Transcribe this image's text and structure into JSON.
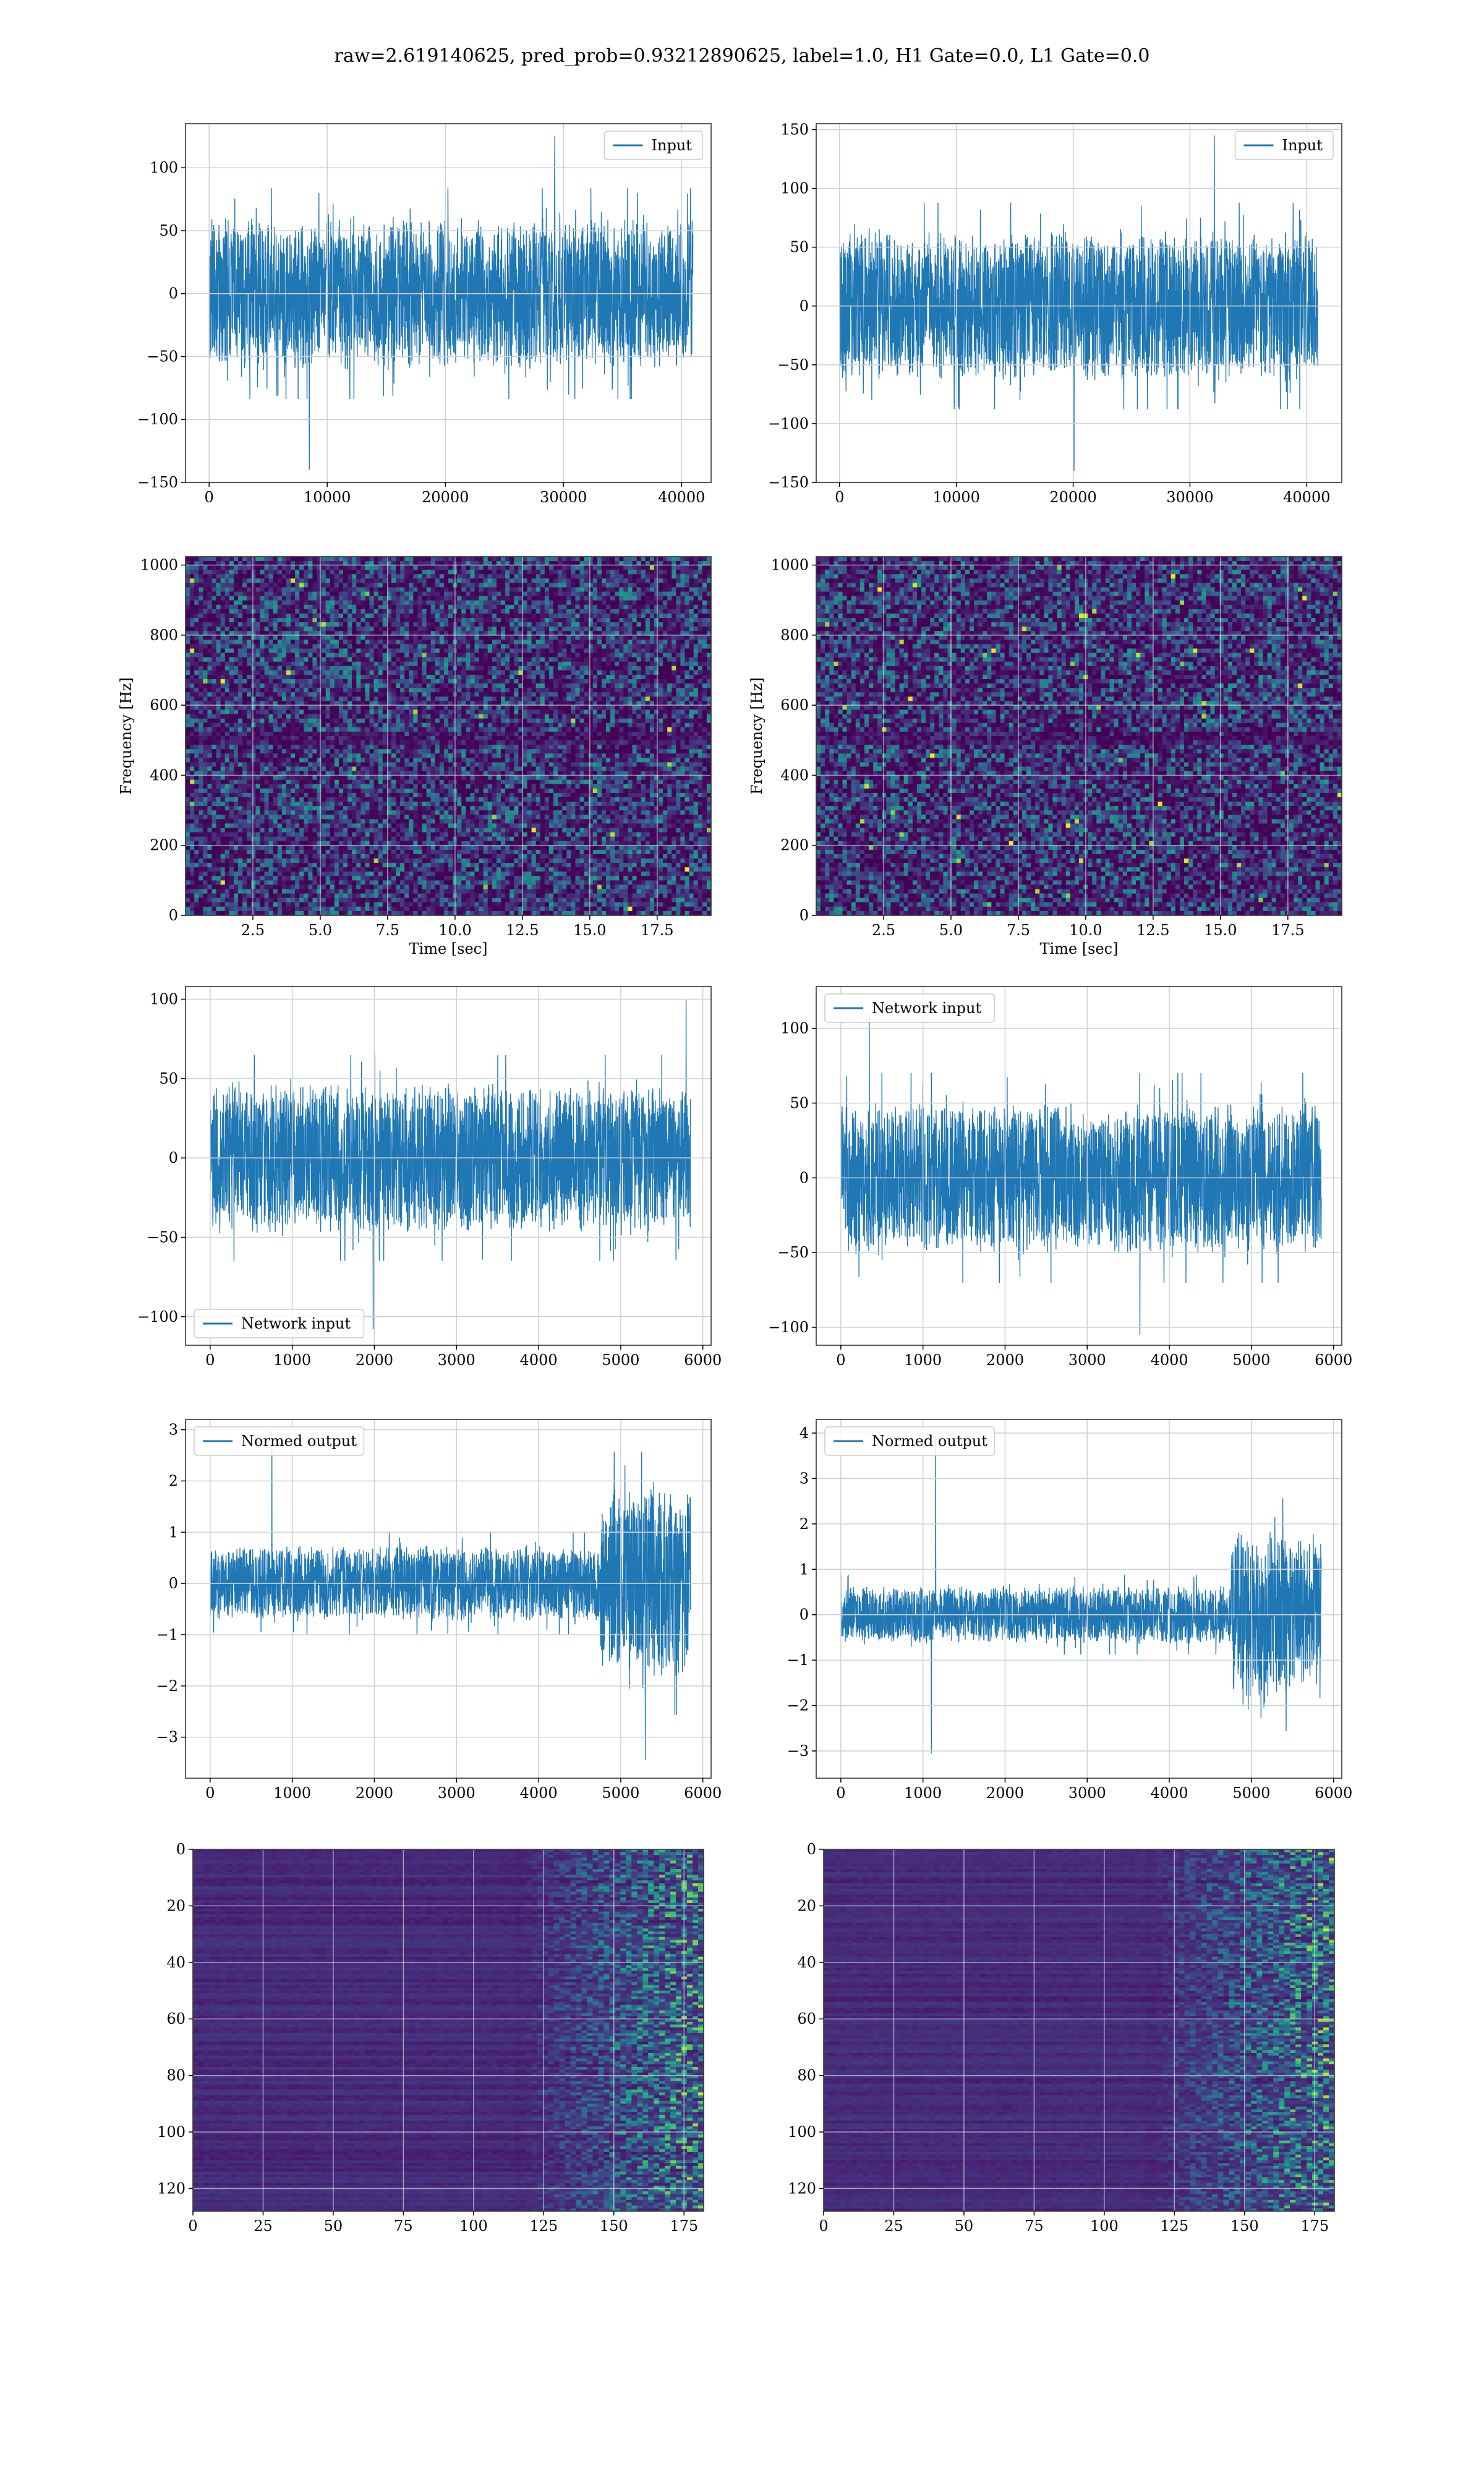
{
  "title": "raw=2.619140625, pred_prob=0.93212890625, label=1.0, H1 Gate=0.0, L1 Gate=0.0",
  "colors": {
    "line": "#1f77b4",
    "grid": "#d0d0d0",
    "viridis_dark": "#440154"
  },
  "chart_data": [
    {
      "id": "h1-input",
      "type": "line",
      "legend": [
        "Input"
      ],
      "legend_loc": "upper right",
      "xlim": [
        -2000,
        42500
      ],
      "ylim": [
        -150,
        135
      ],
      "xticks": [
        0,
        10000,
        20000,
        30000,
        40000
      ],
      "yticks": [
        -150,
        -100,
        -50,
        0,
        50,
        100
      ],
      "x_range": [
        0,
        40960
      ],
      "band": 62,
      "peak": 125,
      "trough": -140,
      "grid": true
    },
    {
      "id": "l1-input",
      "type": "line",
      "legend": [
        "Input"
      ],
      "legend_loc": "upper right",
      "xlim": [
        -2000,
        43000
      ],
      "ylim": [
        -150,
        155
      ],
      "xticks": [
        0,
        10000,
        20000,
        30000,
        40000
      ],
      "yticks": [
        -150,
        -100,
        -50,
        0,
        50,
        100,
        150
      ],
      "x_range": [
        0,
        40960
      ],
      "band": 65,
      "peak": 145,
      "trough": -140,
      "grid": true
    },
    {
      "id": "h1-spectrogram",
      "type": "heatmap",
      "xlabel": "Time [sec]",
      "ylabel": "Frequency [Hz]",
      "xlim": [
        0,
        19.5
      ],
      "ylim": [
        0,
        1024
      ],
      "xticks": [
        2.5,
        5.0,
        7.5,
        10.0,
        12.5,
        15.0,
        17.5
      ],
      "xtick_labels": [
        "2.5",
        "5.0",
        "7.5",
        "10.0",
        "12.5",
        "15.0",
        "17.5"
      ],
      "yticks": [
        0,
        200,
        400,
        600,
        800,
        1000
      ],
      "grid": true
    },
    {
      "id": "l1-spectrogram",
      "type": "heatmap",
      "xlabel": "Time [sec]",
      "ylabel": "Frequency [Hz]",
      "xlim": [
        0,
        19.5
      ],
      "ylim": [
        0,
        1024
      ],
      "xticks": [
        2.5,
        5.0,
        7.5,
        10.0,
        12.5,
        15.0,
        17.5
      ],
      "xtick_labels": [
        "2.5",
        "5.0",
        "7.5",
        "10.0",
        "12.5",
        "15.0",
        "17.5"
      ],
      "yticks": [
        0,
        200,
        400,
        600,
        800,
        1000
      ],
      "grid": true
    },
    {
      "id": "h1-network-input",
      "type": "line",
      "legend": [
        "Network input"
      ],
      "legend_loc": "lower left",
      "xlim": [
        -300,
        6100
      ],
      "ylim": [
        -118,
        108
      ],
      "xticks": [
        0,
        1000,
        2000,
        3000,
        4000,
        5000,
        6000
      ],
      "yticks": [
        -100,
        -50,
        0,
        50,
        100
      ],
      "x_range": [
        0,
        5850
      ],
      "band": 48,
      "peak": 100,
      "trough": -108,
      "grid": true
    },
    {
      "id": "l1-network-input",
      "type": "line",
      "legend": [
        "Network input"
      ],
      "legend_loc": "upper left",
      "xlim": [
        -300,
        6100
      ],
      "ylim": [
        -112,
        128
      ],
      "xticks": [
        0,
        1000,
        2000,
        3000,
        4000,
        5000,
        6000
      ],
      "yticks": [
        -100,
        -50,
        0,
        50,
        100
      ],
      "x_range": [
        0,
        5850
      ],
      "band": 52,
      "peak": 110,
      "trough": -105,
      "grid": true
    },
    {
      "id": "h1-normed-output",
      "type": "line",
      "legend": [
        "Normed output"
      ],
      "legend_loc": "upper left",
      "xlim": [
        -300,
        6100
      ],
      "ylim": [
        -3.8,
        3.2
      ],
      "xticks": [
        0,
        1000,
        2000,
        3000,
        4000,
        5000,
        6000
      ],
      "yticks": [
        -3,
        -2,
        -1,
        0,
        1,
        2,
        3
      ],
      "x_range": [
        0,
        5850
      ],
      "band": 0.75,
      "burst_from": 4750,
      "burst_band": 1.9,
      "peak": 3.0,
      "trough": -3.45,
      "grid": true
    },
    {
      "id": "l1-normed-output",
      "type": "line",
      "legend": [
        "Normed output"
      ],
      "legend_loc": "upper left",
      "xlim": [
        -300,
        6100
      ],
      "ylim": [
        -3.6,
        4.3
      ],
      "xticks": [
        0,
        1000,
        2000,
        3000,
        4000,
        5000,
        6000
      ],
      "yticks": [
        -3,
        -2,
        -1,
        0,
        1,
        2,
        3,
        4
      ],
      "x_range": [
        0,
        5850
      ],
      "band": 0.65,
      "burst_from": 4750,
      "burst_band": 1.9,
      "peak": 3.95,
      "trough": -3.05,
      "grid": true
    },
    {
      "id": "h1-feature-map",
      "type": "heatmap",
      "xlim": [
        0,
        182
      ],
      "ylim": [
        128,
        0
      ],
      "xticks": [
        0,
        25,
        50,
        75,
        100,
        125,
        150,
        175
      ],
      "yticks": [
        0,
        20,
        40,
        60,
        80,
        100,
        120
      ],
      "grid": true
    },
    {
      "id": "l1-feature-map",
      "type": "heatmap",
      "xlim": [
        0,
        182
      ],
      "ylim": [
        128,
        0
      ],
      "xticks": [
        0,
        25,
        50,
        75,
        100,
        125,
        150,
        175
      ],
      "yticks": [
        0,
        20,
        40,
        60,
        80,
        100,
        120
      ],
      "grid": true
    }
  ]
}
